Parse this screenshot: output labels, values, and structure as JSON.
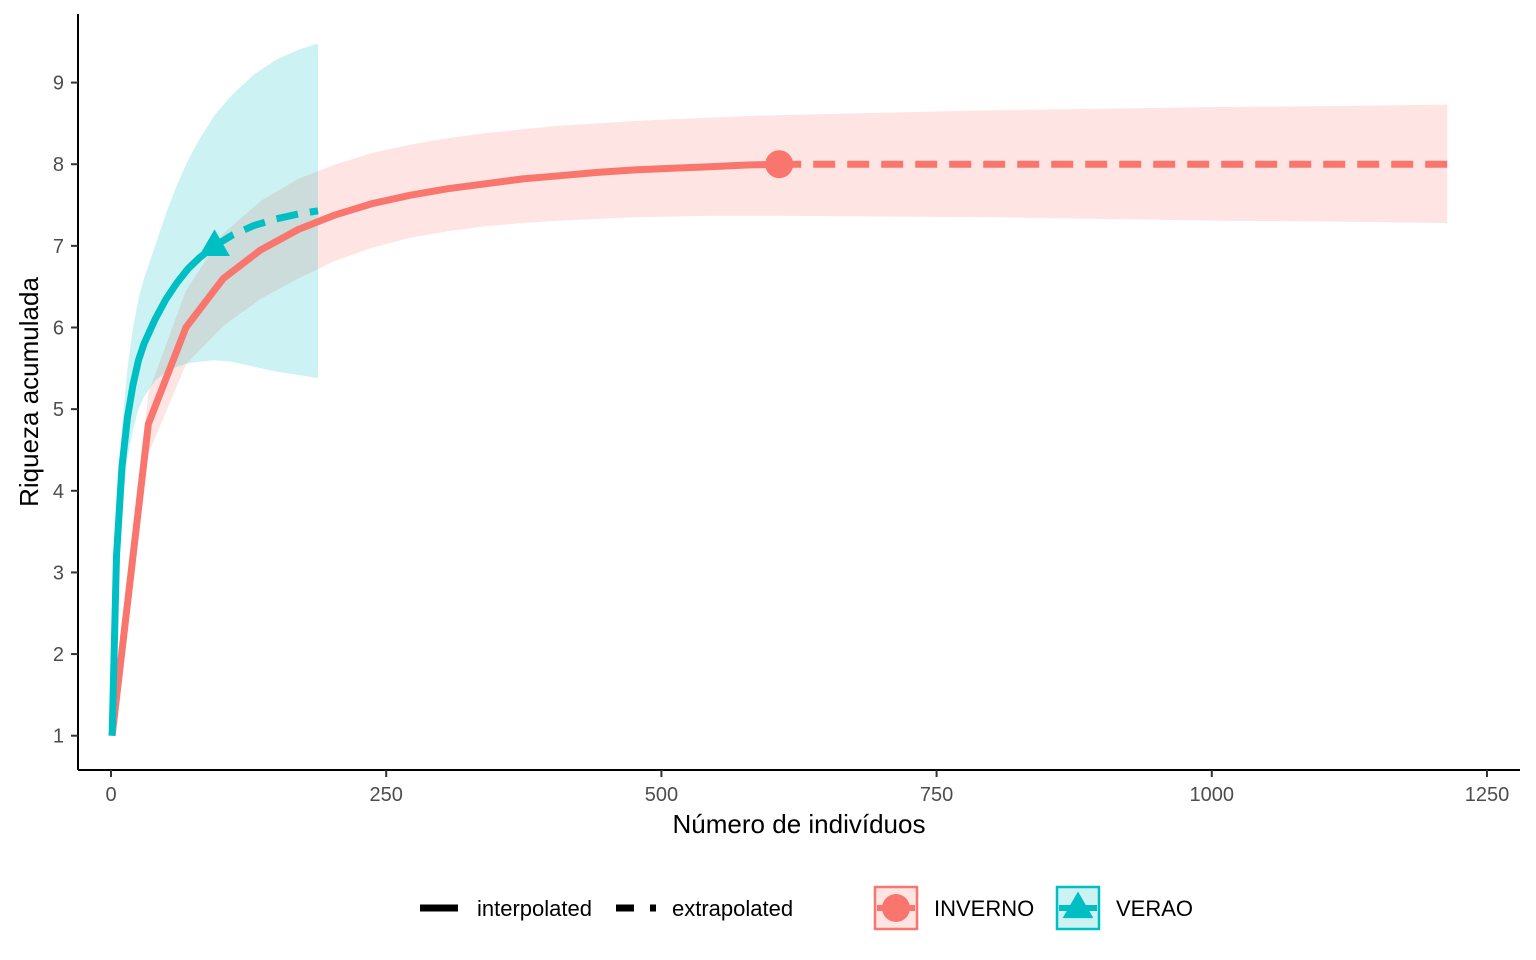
{
  "chart_data": {
    "type": "line",
    "xlabel": "Número de indivíduos",
    "ylabel": "Riqueza acumulada",
    "xlim": [
      -30,
      1280
    ],
    "ylim": [
      0.58,
      9.84
    ],
    "x_ticks": [
      0,
      250,
      500,
      750,
      1000,
      1250
    ],
    "x_tick_labels": [
      "0",
      "250",
      "500",
      "750",
      "1000",
      "1250"
    ],
    "y_ticks": [
      1,
      2,
      3,
      4,
      5,
      6,
      7,
      8,
      9
    ],
    "y_tick_labels": [
      "1",
      "2",
      "3",
      "4",
      "5",
      "6",
      "7",
      "8",
      "9"
    ],
    "grid": false,
    "legend_position": "bottom",
    "linetype_legend": [
      {
        "key": "interpolated",
        "label": "interpolated",
        "dash": "solid"
      },
      {
        "key": "extrapolated",
        "label": "extrapolated",
        "dash": "dashed"
      }
    ],
    "series": [
      {
        "name": "INVERNO",
        "color": "#F8766D",
        "fill": "#F8766D",
        "marker": "circle",
        "observed": {
          "x": 607,
          "y": 8.0
        },
        "interpolated": {
          "x": [
            1,
            34,
            68,
            102,
            136,
            170,
            204,
            238,
            272,
            306,
            340,
            374,
            408,
            442,
            476,
            510,
            544,
            578,
            607
          ],
          "y": [
            1.0,
            4.82,
            6.0,
            6.6,
            6.95,
            7.2,
            7.38,
            7.52,
            7.62,
            7.7,
            7.76,
            7.82,
            7.86,
            7.9,
            7.93,
            7.95,
            7.97,
            7.99,
            8.0
          ]
        },
        "extrapolated": {
          "x": [
            607,
            700,
            800,
            900,
            1000,
            1100,
            1214
          ],
          "y": [
            8.0,
            8.0,
            8.0,
            8.0,
            8.0,
            8.0,
            8.0
          ]
        },
        "ci_lower": {
          "x": [
            1,
            34,
            68,
            102,
            136,
            170,
            204,
            238,
            272,
            306,
            340,
            374,
            408,
            442,
            476,
            510,
            544,
            578,
            607,
            700,
            800,
            900,
            1000,
            1100,
            1214
          ],
          "y": [
            1.0,
            4.45,
            5.55,
            6.02,
            6.35,
            6.6,
            6.82,
            6.98,
            7.1,
            7.18,
            7.24,
            7.28,
            7.31,
            7.33,
            7.35,
            7.36,
            7.37,
            7.37,
            7.37,
            7.36,
            7.35,
            7.33,
            7.31,
            7.3,
            7.28
          ]
        },
        "ci_upper": {
          "x": [
            1,
            34,
            68,
            102,
            136,
            170,
            204,
            238,
            272,
            306,
            340,
            374,
            408,
            442,
            476,
            510,
            544,
            578,
            607,
            700,
            800,
            900,
            1000,
            1100,
            1214
          ],
          "y": [
            1.0,
            5.2,
            6.45,
            7.15,
            7.55,
            7.82,
            8.0,
            8.14,
            8.24,
            8.32,
            8.38,
            8.43,
            8.47,
            8.5,
            8.53,
            8.55,
            8.57,
            8.59,
            8.6,
            8.63,
            8.66,
            8.68,
            8.7,
            8.71,
            8.73
          ]
        }
      },
      {
        "name": "VERAO",
        "color": "#00BFC4",
        "fill": "#00BFC4",
        "marker": "triangle",
        "observed": {
          "x": 94,
          "y": 7.0
        },
        "interpolated": {
          "x": [
            1,
            5,
            10,
            15,
            20,
            25,
            30,
            40,
            50,
            60,
            70,
            80,
            94
          ],
          "y": [
            1.0,
            3.2,
            4.3,
            4.9,
            5.3,
            5.6,
            5.8,
            6.1,
            6.35,
            6.55,
            6.72,
            6.85,
            7.0
          ]
        },
        "extrapolated": {
          "x": [
            94,
            110,
            130,
            150,
            170,
            188
          ],
          "y": [
            7.0,
            7.13,
            7.25,
            7.33,
            7.39,
            7.43
          ]
        },
        "ci_lower": {
          "x": [
            1,
            5,
            10,
            15,
            20,
            25,
            30,
            40,
            50,
            60,
            70,
            80,
            94,
            110,
            130,
            150,
            170,
            188
          ],
          "y": [
            1.0,
            2.8,
            3.8,
            4.4,
            4.75,
            5.0,
            5.15,
            5.35,
            5.45,
            5.52,
            5.56,
            5.58,
            5.6,
            5.58,
            5.52,
            5.46,
            5.42,
            5.38
          ]
        },
        "ci_upper": {
          "x": [
            1,
            5,
            10,
            15,
            20,
            25,
            30,
            40,
            50,
            60,
            70,
            80,
            94,
            110,
            130,
            150,
            170,
            188
          ],
          "y": [
            1.0,
            3.6,
            4.8,
            5.5,
            6.0,
            6.35,
            6.6,
            7.0,
            7.4,
            7.75,
            8.05,
            8.3,
            8.6,
            8.85,
            9.1,
            9.28,
            9.4,
            9.48
          ]
        }
      }
    ]
  }
}
